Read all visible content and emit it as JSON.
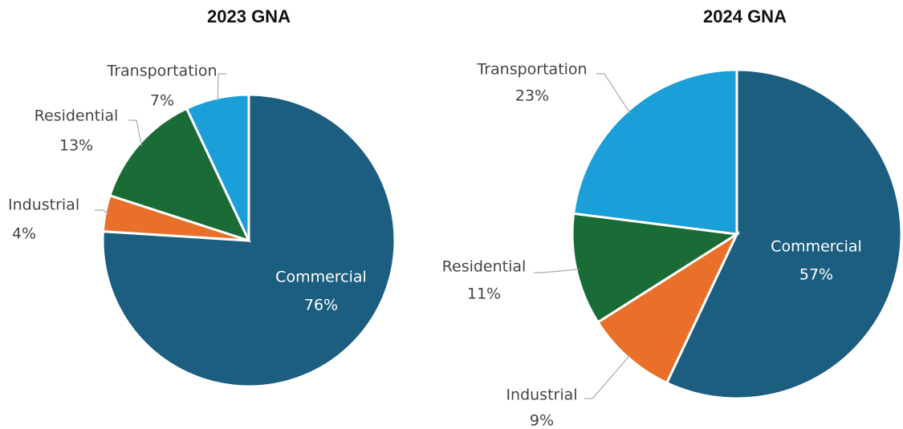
{
  "chart_data": [
    {
      "type": "pie",
      "title": "2023 GNA",
      "categories": [
        "Commercial",
        "Industrial",
        "Residential",
        "Transportation"
      ],
      "values": [
        76,
        4,
        13,
        7
      ],
      "value_labels": [
        "76%",
        "4%",
        "13%",
        "7%"
      ],
      "colors": [
        "#1b5e80",
        "#e8702a",
        "#1a6b35",
        "#1a9fd8"
      ]
    },
    {
      "type": "pie",
      "title": "2024 GNA",
      "categories": [
        "Commercial",
        "Industrial",
        "Residential",
        "Transportation"
      ],
      "values": [
        57,
        9,
        11,
        23
      ],
      "value_labels": [
        "57%",
        "9%",
        "11%",
        "23%"
      ],
      "colors": [
        "#1b5e80",
        "#e8702a",
        "#1a6b35",
        "#1a9fd8"
      ]
    }
  ]
}
